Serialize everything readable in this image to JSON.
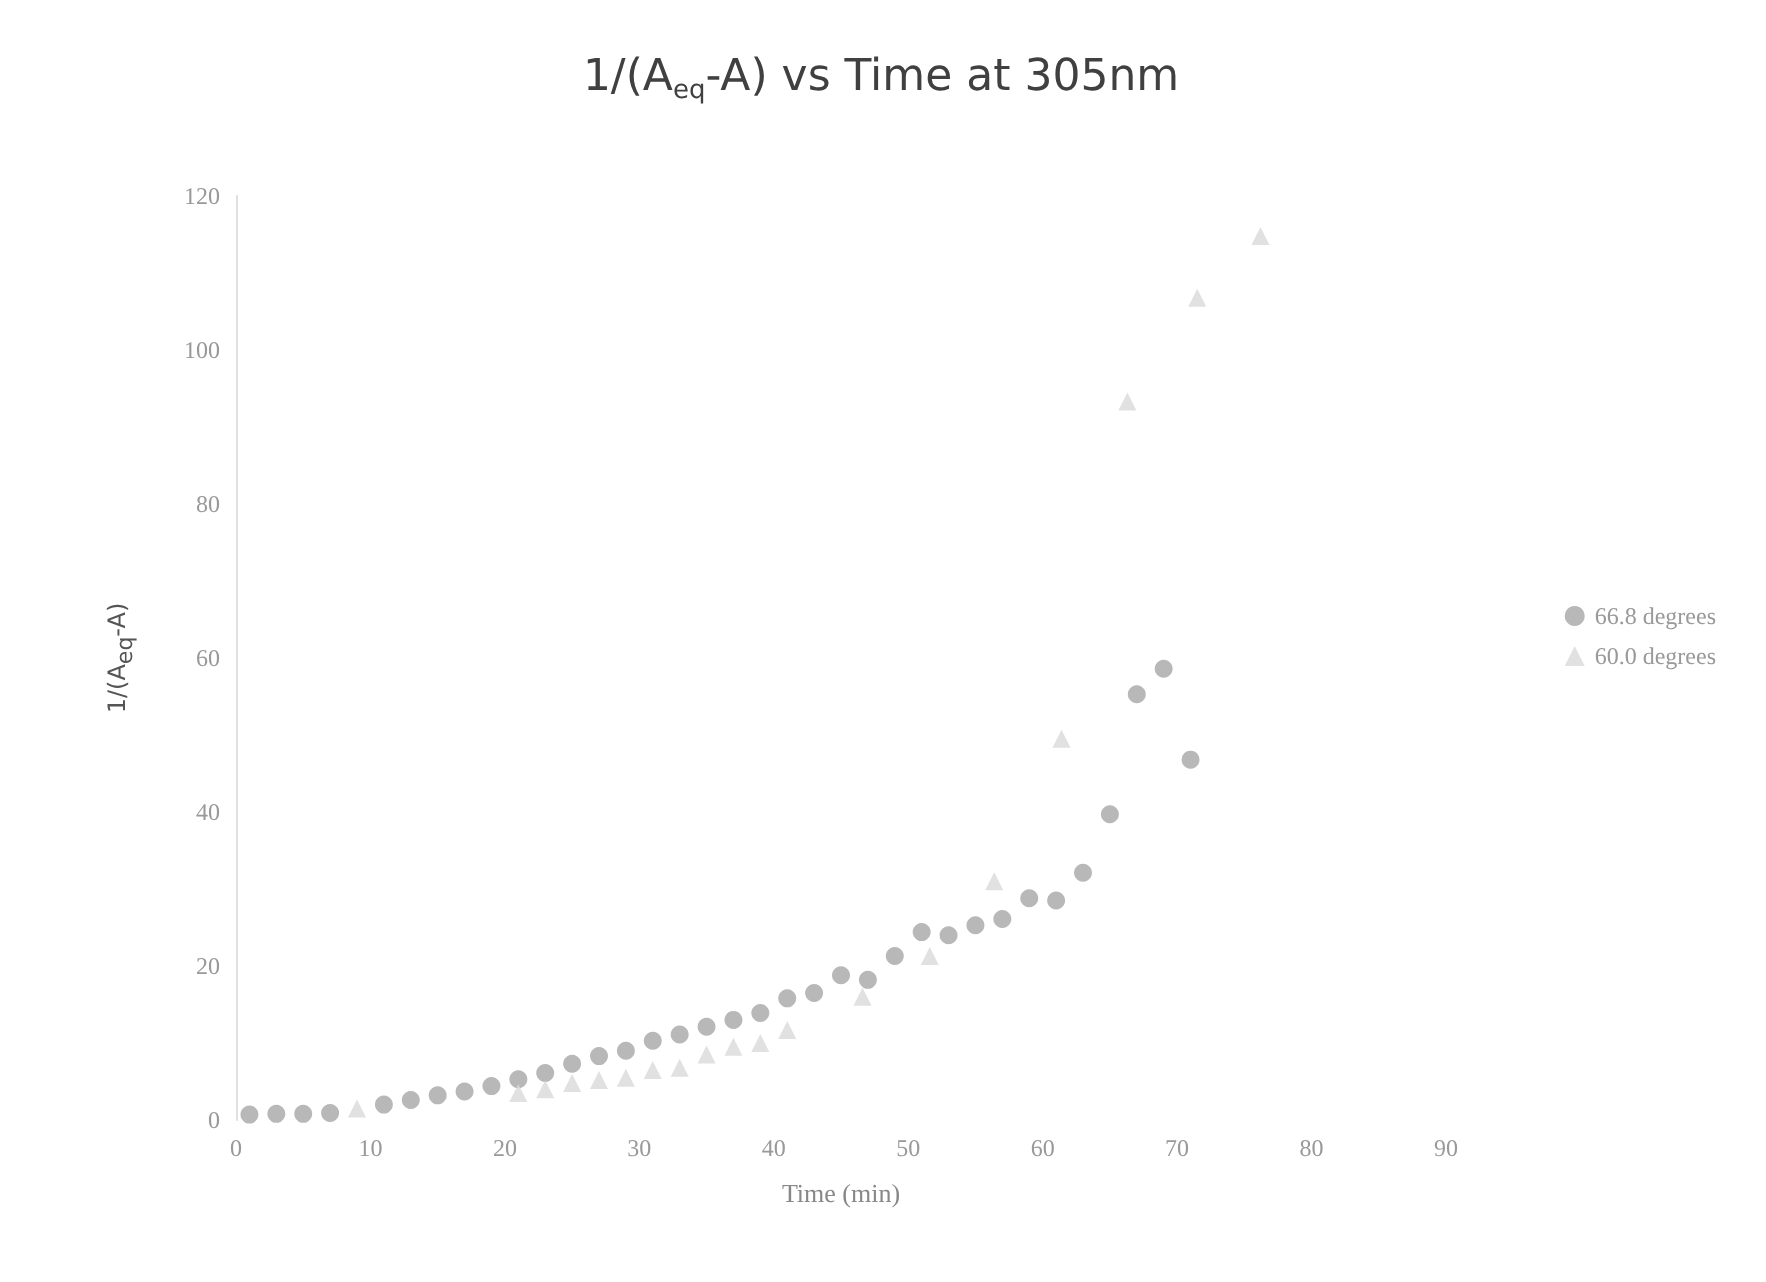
{
  "chart_data": {
    "type": "scatter",
    "title": "1/(A$_{eq}$-A) vs Time at 305nm",
    "xlabel": "Time (min)",
    "ylabel": "1/(A$_{eq}$-A)",
    "xlim": [
      0,
      90
    ],
    "xticks": [
      0,
      10,
      20,
      30,
      40,
      50,
      60,
      70,
      80,
      90
    ],
    "ylim": [
      0,
      120
    ],
    "yticks": [
      0,
      20,
      40,
      60,
      80,
      100,
      120
    ],
    "grid": false,
    "legend": "right",
    "series": [
      {
        "name": "66.8 degrees",
        "color": "#a6a6a6",
        "marker": "circle",
        "x": [
          1,
          3,
          5,
          7,
          11,
          13,
          15,
          17,
          19,
          21,
          23,
          25,
          27,
          29,
          31,
          33,
          35,
          37,
          39,
          41,
          43,
          45,
          47,
          49,
          51,
          53,
          55,
          57,
          59,
          61,
          63,
          65,
          67,
          69,
          71
        ],
        "values": [
          0.7,
          0.8,
          0.8,
          0.9,
          2.0,
          2.6,
          3.2,
          3.7,
          4.4,
          5.3,
          6.1,
          7.3,
          8.3,
          9.0,
          10.3,
          11.1,
          12.1,
          13.0,
          13.9,
          15.8,
          16.5,
          18.8,
          18.2,
          21.3,
          24.4,
          24.0,
          25.3,
          26.1,
          28.8,
          28.5,
          32.1,
          39.7,
          55.3,
          58.6,
          46.8
        ]
      },
      {
        "name": "60.0 degrees",
        "color": "#d9d9d9",
        "marker": "triangle",
        "x": [
          9,
          21,
          23,
          25,
          27,
          29,
          31,
          33,
          35,
          37,
          39,
          41,
          46.6,
          51.6,
          56.4,
          61.4,
          66.3,
          71.5,
          76.2
        ],
        "values": [
          1.5,
          3.5,
          4.0,
          4.8,
          5.2,
          5.5,
          6.5,
          6.8,
          8.5,
          9.5,
          10,
          11.7,
          16,
          21.3,
          31,
          49.5,
          93.3,
          106.8,
          114.8
        ]
      }
    ]
  }
}
